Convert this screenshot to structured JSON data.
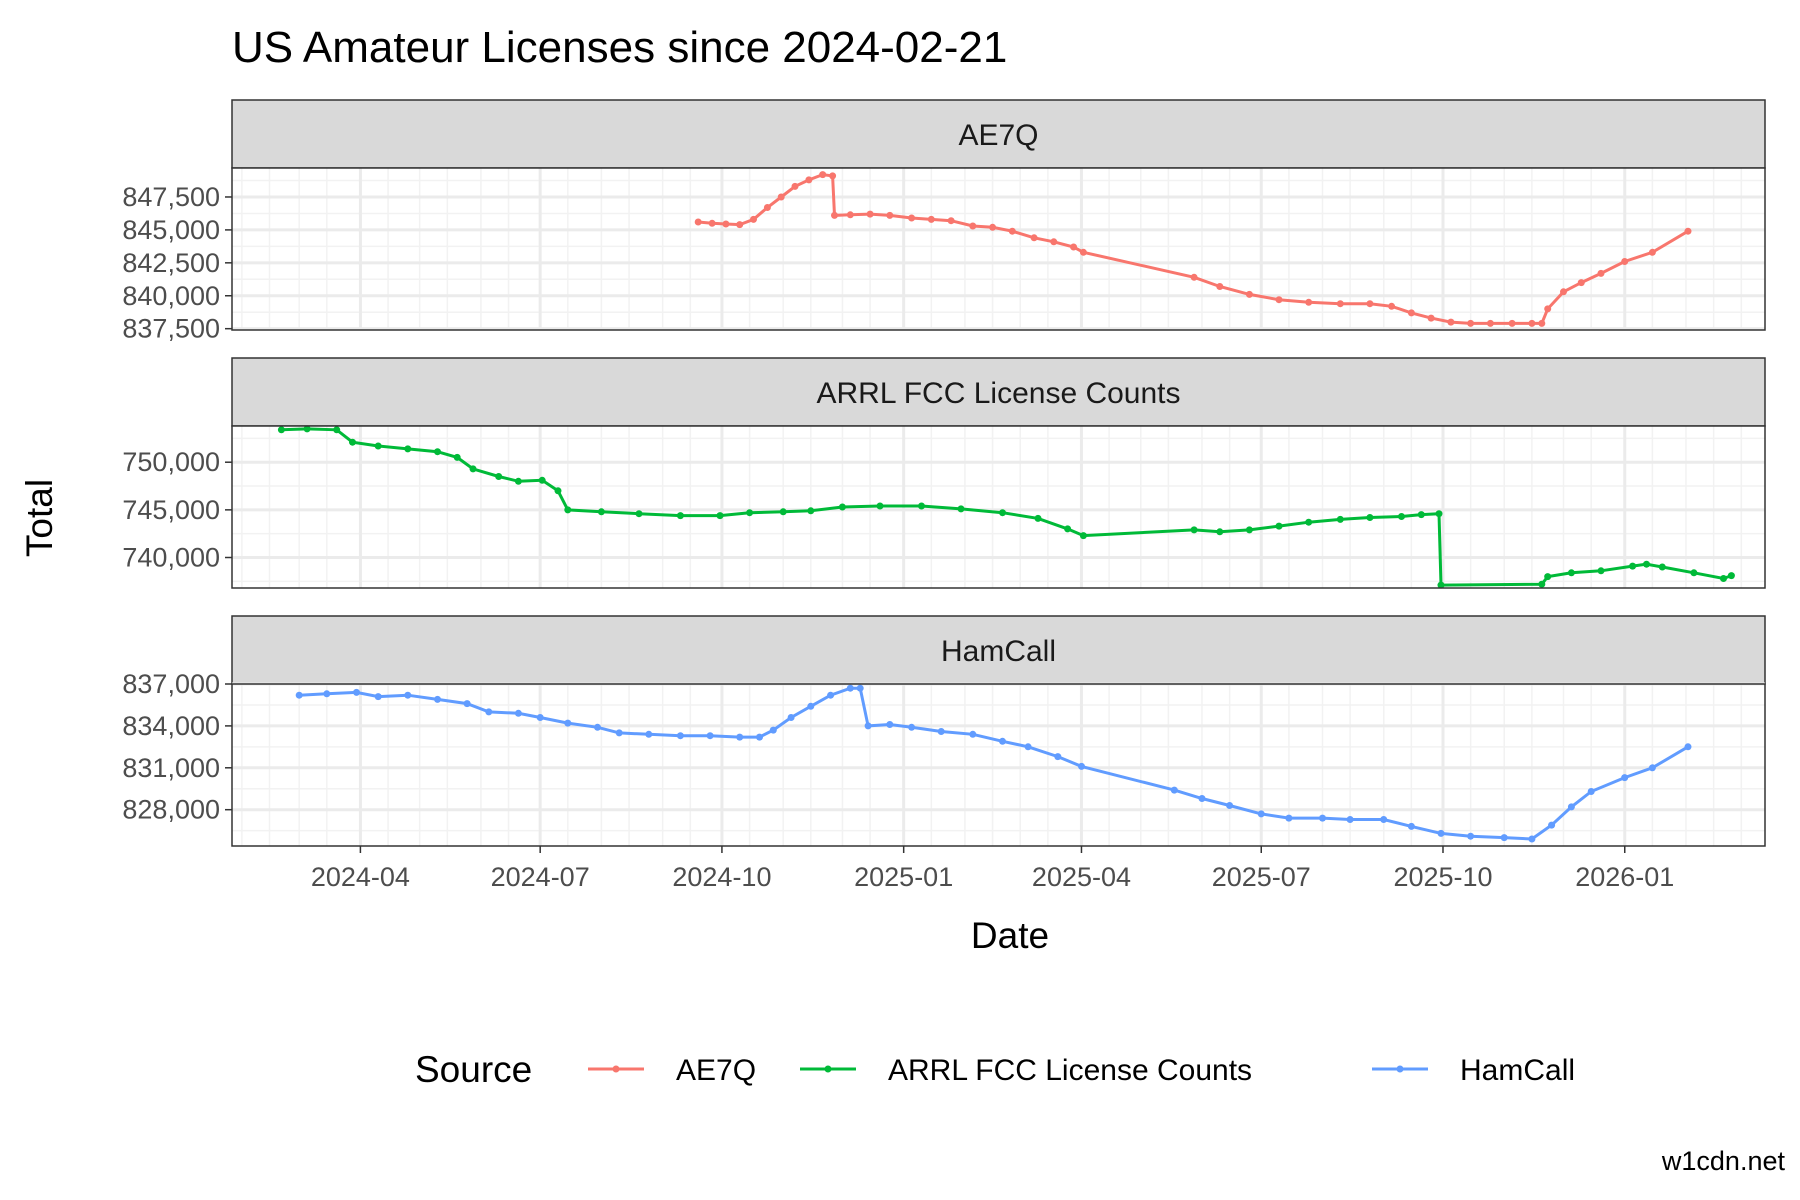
{
  "chart_data": {
    "type": "line",
    "title": "US Amateur Licenses since 2024-02-21",
    "xlabel": "Date",
    "ylabel": "Total",
    "caption": "w1cdn.net",
    "legend": {
      "title": "Source",
      "position": "bottom"
    },
    "x_ticks": [
      "2024-04",
      "2024-07",
      "2024-10",
      "2025-01",
      "2025-04",
      "2025-07",
      "2025-10",
      "2026-01"
    ],
    "xlim": [
      "2024-01-27",
      "2026-03-13"
    ],
    "grid": true,
    "colors": {
      "AE7Q": "#F8766D",
      "ARRL FCC License Counts": "#00BA38",
      "HamCall": "#619CFF"
    },
    "panels": [
      {
        "name": "AE7Q",
        "ylim": [
          837400,
          849700
        ],
        "y_ticks": [
          847500,
          845000,
          842500,
          840000,
          837500
        ],
        "y_tick_labels": [
          "847,500",
          "845,000",
          "842,500",
          "840,000",
          "837,500"
        ],
        "points": [
          [
            "2024-09-19",
            845600
          ],
          [
            "2024-09-26",
            845500
          ],
          [
            "2024-10-03",
            845450
          ],
          [
            "2024-10-10",
            845400
          ],
          [
            "2024-10-17",
            845800
          ],
          [
            "2024-10-24",
            846700
          ],
          [
            "2024-10-31",
            847500
          ],
          [
            "2024-11-07",
            848300
          ],
          [
            "2024-11-14",
            848800
          ],
          [
            "2024-11-21",
            849200
          ],
          [
            "2024-11-26",
            849100
          ],
          [
            "2024-11-27",
            846100
          ],
          [
            "2024-12-05",
            846150
          ],
          [
            "2024-12-15",
            846200
          ],
          [
            "2024-12-25",
            846100
          ],
          [
            "2025-01-05",
            845900
          ],
          [
            "2025-01-15",
            845800
          ],
          [
            "2025-01-25",
            845700
          ],
          [
            "2025-02-05",
            845300
          ],
          [
            "2025-02-15",
            845200
          ],
          [
            "2025-02-25",
            844900
          ],
          [
            "2025-03-08",
            844400
          ],
          [
            "2025-03-18",
            844100
          ],
          [
            "2025-03-28",
            843700
          ],
          [
            "2025-04-02",
            843300
          ],
          [
            "2025-05-28",
            841400
          ],
          [
            "2025-06-10",
            840700
          ],
          [
            "2025-06-25",
            840100
          ],
          [
            "2025-07-10",
            839700
          ],
          [
            "2025-07-25",
            839500
          ],
          [
            "2025-08-10",
            839400
          ],
          [
            "2025-08-25",
            839400
          ],
          [
            "2025-09-05",
            839200
          ],
          [
            "2025-09-15",
            838700
          ],
          [
            "2025-09-25",
            838300
          ],
          [
            "2025-10-05",
            838000
          ],
          [
            "2025-10-15",
            837900
          ],
          [
            "2025-10-25",
            837900
          ],
          [
            "2025-11-05",
            837900
          ],
          [
            "2025-11-15",
            837900
          ],
          [
            "2025-11-20",
            837900
          ],
          [
            "2025-11-23",
            839000
          ],
          [
            "2025-12-01",
            840300
          ],
          [
            "2025-12-10",
            841000
          ],
          [
            "2025-12-20",
            841700
          ],
          [
            "2026-01-01",
            842600
          ],
          [
            "2026-01-15",
            843300
          ],
          [
            "2026-02-02",
            844900
          ]
        ]
      },
      {
        "name": "ARRL FCC License Counts",
        "ylim": [
          736800,
          753800
        ],
        "y_ticks": [
          750000,
          745000,
          740000
        ],
        "y_tick_labels": [
          "750,000",
          "745,000",
          "740,000"
        ],
        "points": [
          [
            "2024-02-21",
            753400
          ],
          [
            "2024-03-05",
            753500
          ],
          [
            "2024-03-20",
            753400
          ],
          [
            "2024-03-28",
            752100
          ],
          [
            "2024-04-10",
            751700
          ],
          [
            "2024-04-25",
            751400
          ],
          [
            "2024-05-10",
            751100
          ],
          [
            "2024-05-20",
            750500
          ],
          [
            "2024-05-28",
            749300
          ],
          [
            "2024-06-10",
            748500
          ],
          [
            "2024-06-20",
            748000
          ],
          [
            "2024-07-02",
            748100
          ],
          [
            "2024-07-10",
            747000
          ],
          [
            "2024-07-15",
            745000
          ],
          [
            "2024-08-01",
            744800
          ],
          [
            "2024-08-20",
            744600
          ],
          [
            "2024-09-10",
            744400
          ],
          [
            "2024-09-30",
            744400
          ],
          [
            "2024-10-15",
            744700
          ],
          [
            "2024-11-01",
            744800
          ],
          [
            "2024-11-15",
            744900
          ],
          [
            "2024-12-01",
            745300
          ],
          [
            "2024-12-20",
            745400
          ],
          [
            "2025-01-10",
            745400
          ],
          [
            "2025-01-30",
            745100
          ],
          [
            "2025-02-20",
            744700
          ],
          [
            "2025-03-10",
            744100
          ],
          [
            "2025-03-25",
            743000
          ],
          [
            "2025-04-02",
            742300
          ],
          [
            "2025-05-28",
            742900
          ],
          [
            "2025-06-10",
            742700
          ],
          [
            "2025-06-25",
            742900
          ],
          [
            "2025-07-10",
            743300
          ],
          [
            "2025-07-25",
            743700
          ],
          [
            "2025-08-10",
            744000
          ],
          [
            "2025-08-25",
            744200
          ],
          [
            "2025-09-10",
            744300
          ],
          [
            "2025-09-20",
            744500
          ],
          [
            "2025-09-29",
            744600
          ],
          [
            "2025-09-30",
            737100
          ],
          [
            "2025-11-20",
            737200
          ],
          [
            "2025-11-23",
            738000
          ],
          [
            "2025-12-05",
            738400
          ],
          [
            "2025-12-20",
            738600
          ],
          [
            "2026-01-05",
            739100
          ],
          [
            "2026-01-12",
            739300
          ],
          [
            "2026-01-20",
            739000
          ],
          [
            "2026-02-05",
            738400
          ],
          [
            "2026-02-20",
            737800
          ],
          [
            "2026-02-24",
            738100
          ]
        ]
      },
      {
        "name": "HamCall",
        "ylim": [
          825400,
          837000
        ],
        "y_ticks": [
          837000,
          834000,
          831000,
          828000
        ],
        "y_tick_labels": [
          "837,000",
          "834,000",
          "831,000",
          "828,000"
        ],
        "points": [
          [
            "2024-03-01",
            836200
          ],
          [
            "2024-03-15",
            836300
          ],
          [
            "2024-03-30",
            836400
          ],
          [
            "2024-04-10",
            836100
          ],
          [
            "2024-04-25",
            836200
          ],
          [
            "2024-05-10",
            835900
          ],
          [
            "2024-05-25",
            835600
          ],
          [
            "2024-06-05",
            835000
          ],
          [
            "2024-06-20",
            834900
          ],
          [
            "2024-07-01",
            834600
          ],
          [
            "2024-07-15",
            834200
          ],
          [
            "2024-07-30",
            833900
          ],
          [
            "2024-08-10",
            833500
          ],
          [
            "2024-08-25",
            833400
          ],
          [
            "2024-09-10",
            833300
          ],
          [
            "2024-09-25",
            833300
          ],
          [
            "2024-10-10",
            833200
          ],
          [
            "2024-10-20",
            833200
          ],
          [
            "2024-10-27",
            833700
          ],
          [
            "2024-11-05",
            834600
          ],
          [
            "2024-11-15",
            835400
          ],
          [
            "2024-11-25",
            836200
          ],
          [
            "2024-12-05",
            836700
          ],
          [
            "2024-12-10",
            836700
          ],
          [
            "2024-12-14",
            834000
          ],
          [
            "2024-12-25",
            834100
          ],
          [
            "2025-01-05",
            833900
          ],
          [
            "2025-01-20",
            833600
          ],
          [
            "2025-02-05",
            833400
          ],
          [
            "2025-02-20",
            832900
          ],
          [
            "2025-03-05",
            832500
          ],
          [
            "2025-03-20",
            831800
          ],
          [
            "2025-04-01",
            831100
          ],
          [
            "2025-05-18",
            829400
          ],
          [
            "2025-06-01",
            828800
          ],
          [
            "2025-06-15",
            828300
          ],
          [
            "2025-07-01",
            827700
          ],
          [
            "2025-07-15",
            827400
          ],
          [
            "2025-08-01",
            827400
          ],
          [
            "2025-08-15",
            827300
          ],
          [
            "2025-09-01",
            827300
          ],
          [
            "2025-09-15",
            826800
          ],
          [
            "2025-09-30",
            826300
          ],
          [
            "2025-10-15",
            826100
          ],
          [
            "2025-11-01",
            826000
          ],
          [
            "2025-11-15",
            825900
          ],
          [
            "2025-11-25",
            826900
          ],
          [
            "2025-12-05",
            828200
          ],
          [
            "2025-12-15",
            829300
          ],
          [
            "2026-01-01",
            830300
          ],
          [
            "2026-01-15",
            831000
          ],
          [
            "2026-02-02",
            832500
          ]
        ]
      }
    ]
  }
}
